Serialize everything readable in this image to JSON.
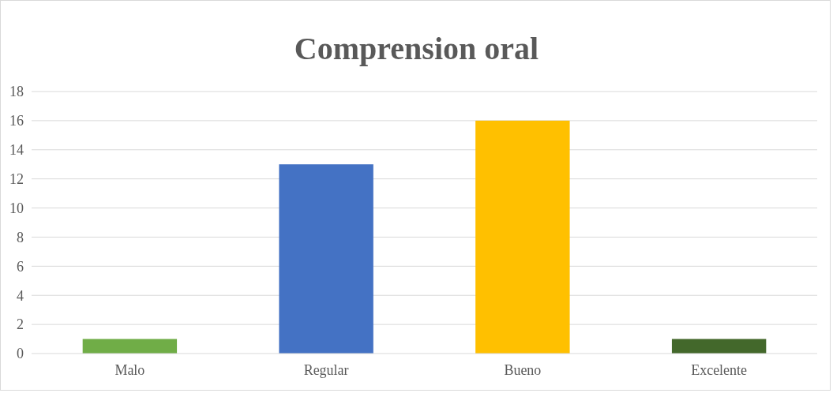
{
  "chart_data": {
    "type": "bar",
    "title": "Comprension oral",
    "categories": [
      "Malo",
      "Regular",
      "Bueno",
      "Excelente"
    ],
    "values": [
      1,
      13,
      16,
      1
    ],
    "colors": [
      "#70ad47",
      "#4472c4",
      "#ffc000",
      "#43682b"
    ],
    "ylim": [
      0,
      18
    ],
    "yticks": [
      0,
      2,
      4,
      6,
      8,
      10,
      12,
      14,
      16,
      18
    ],
    "grid": "y"
  }
}
